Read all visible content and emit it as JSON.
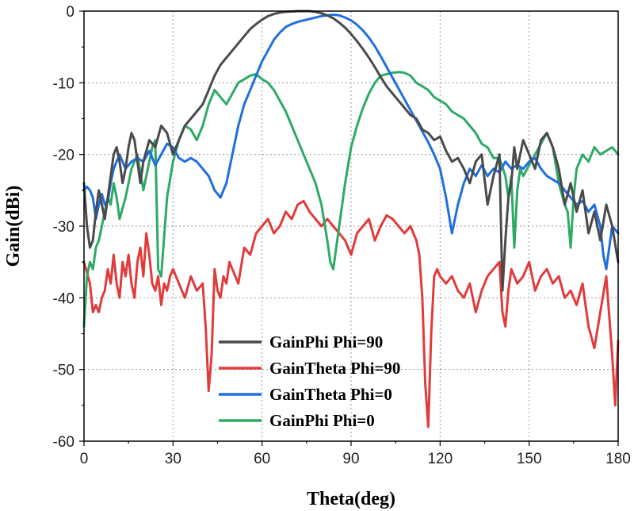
{
  "chart_data": {
    "type": "line",
    "title": "",
    "xlabel": "Theta(deg)",
    "ylabel": "Gain(dBi)",
    "xlim": [
      0,
      180
    ],
    "ylim": [
      -60,
      0
    ],
    "xticks": [
      0,
      30,
      60,
      90,
      120,
      150,
      180
    ],
    "yticks": [
      0,
      -10,
      -20,
      -30,
      -40,
      -50,
      -60
    ],
    "xtick_labels": [
      "0",
      "30",
      "60",
      "90",
      "120",
      "150",
      "180"
    ],
    "ytick_labels": [
      "0",
      "-10",
      "-20",
      "-30",
      "-40",
      "-50",
      "-60"
    ],
    "grid": true,
    "legend_position": "lower-center",
    "series": [
      {
        "name": "GainPhi Phi=90",
        "color": "#4a4a4a",
        "x": [
          0,
          1,
          2,
          3,
          4,
          5,
          6,
          7,
          8,
          9,
          10,
          11,
          12,
          13,
          14,
          15,
          16,
          17,
          18,
          19,
          20,
          22,
          24,
          26,
          28,
          30,
          32,
          34,
          36,
          38,
          40,
          42,
          44,
          46,
          48,
          50,
          52,
          54,
          56,
          58,
          60,
          62,
          64,
          66,
          68,
          70,
          72,
          74,
          76,
          78,
          80,
          82,
          84,
          86,
          88,
          90,
          92,
          94,
          96,
          98,
          100,
          102,
          104,
          106,
          108,
          110,
          112,
          114,
          116,
          118,
          120,
          122,
          124,
          126,
          128,
          130,
          132,
          134,
          136,
          138,
          140,
          141,
          142,
          143,
          144,
          145,
          146,
          147,
          148,
          150,
          152,
          154,
          156,
          158,
          160,
          162,
          164,
          166,
          168,
          170,
          172,
          174,
          176,
          178,
          180
        ],
        "y": [
          -24,
          -30,
          -33,
          -32,
          -28,
          -25,
          -27,
          -29,
          -26,
          -23,
          -20,
          -19,
          -21,
          -24,
          -22,
          -19,
          -17,
          -18,
          -21,
          -24,
          -21,
          -18,
          -19,
          -16,
          -17,
          -20,
          -18,
          -16,
          -15,
          -14,
          -13,
          -11,
          -9,
          -7.5,
          -6.5,
          -5.5,
          -4.5,
          -3.5,
          -2.5,
          -1.8,
          -1.2,
          -0.7,
          -0.4,
          -0.2,
          -0.1,
          -0.05,
          0,
          0,
          0,
          -0.1,
          -0.3,
          -0.6,
          -1,
          -1.6,
          -2.3,
          -3.2,
          -4.2,
          -5.3,
          -6.5,
          -7.8,
          -9.2,
          -10.5,
          -11.5,
          -12.5,
          -13.5,
          -14.5,
          -15,
          -16.5,
          -17,
          -18,
          -17.5,
          -19.5,
          -21,
          -20.5,
          -22,
          -24,
          -21,
          -20,
          -27,
          -23,
          -20,
          -39,
          -32,
          -26,
          -24,
          -19,
          -22,
          -20,
          -18,
          -20,
          -22,
          -18,
          -17,
          -19,
          -22,
          -27,
          -24,
          -28,
          -25,
          -31,
          -28,
          -32,
          -27,
          -30,
          -35
        ]
      },
      {
        "name": "GainTheta Phi=90",
        "color": "#e03c3c",
        "x": [
          0,
          2,
          3,
          4,
          5,
          6,
          7,
          8,
          9,
          10,
          11,
          12,
          13,
          14,
          15,
          16,
          17,
          18,
          19,
          20,
          21,
          22,
          23,
          24,
          25,
          26,
          27,
          28,
          29,
          30,
          32,
          34,
          36,
          38,
          40,
          41,
          42,
          43,
          44,
          45,
          46,
          47,
          48,
          49,
          50,
          52,
          54,
          56,
          58,
          60,
          62,
          64,
          66,
          68,
          70,
          72,
          74,
          76,
          78,
          80,
          82,
          84,
          86,
          88,
          90,
          92,
          94,
          96,
          98,
          100,
          102,
          104,
          106,
          108,
          110,
          112,
          113,
          114,
          115,
          116,
          117,
          118,
          119,
          120,
          122,
          124,
          126,
          128,
          130,
          132,
          134,
          136,
          138,
          140,
          141,
          142,
          143,
          144,
          146,
          148,
          150,
          152,
          154,
          156,
          158,
          160,
          162,
          164,
          166,
          168,
          170,
          172,
          174,
          176,
          178,
          179,
          180
        ],
        "y": [
          -35,
          -38,
          -42,
          -41,
          -42,
          -40,
          -39,
          -36,
          -38,
          -34,
          -38,
          -40,
          -35,
          -37,
          -34,
          -38,
          -40,
          -35,
          -33,
          -37,
          -31,
          -34,
          -38,
          -39,
          -37,
          -41,
          -38,
          -39,
          -37,
          -36,
          -38,
          -40,
          -37,
          -39,
          -38,
          -44,
          -53,
          -48,
          -36,
          -39,
          -40,
          -37,
          -38,
          -35,
          -36,
          -38,
          -33,
          -34,
          -31,
          -30,
          -29,
          -31,
          -30,
          -28,
          -29,
          -27,
          -26.5,
          -28,
          -29,
          -30,
          -29,
          -30,
          -31,
          -32,
          -34,
          -31,
          -30,
          -29,
          -32,
          -30,
          -28.5,
          -29,
          -30,
          -31,
          -30,
          -32,
          -34,
          -40,
          -52,
          -58,
          -45,
          -37,
          -36,
          -37,
          -38,
          -37,
          -39,
          -40,
          -38,
          -42,
          -39,
          -37,
          -36,
          -35,
          -42,
          -44,
          -39,
          -36,
          -38,
          -37,
          -35,
          -39,
          -37,
          -36,
          -38,
          -37,
          -40,
          -39,
          -41,
          -38,
          -44,
          -47,
          -42,
          -37,
          -48,
          -55,
          -46
        ]
      },
      {
        "name": "GainTheta Phi=0",
        "color": "#1f6fe0",
        "x": [
          0,
          1,
          2,
          3,
          4,
          5,
          6,
          7,
          8,
          9,
          10,
          12,
          14,
          16,
          18,
          20,
          22,
          24,
          26,
          28,
          30,
          32,
          34,
          36,
          38,
          40,
          42,
          44,
          46,
          48,
          50,
          52,
          54,
          56,
          58,
          60,
          62,
          64,
          66,
          68,
          70,
          72,
          74,
          76,
          78,
          80,
          82,
          84,
          86,
          88,
          90,
          92,
          94,
          96,
          98,
          100,
          102,
          104,
          106,
          108,
          110,
          112,
          114,
          116,
          118,
          120,
          122,
          124,
          126,
          128,
          130,
          132,
          134,
          136,
          138,
          140,
          142,
          144,
          146,
          148,
          150,
          152,
          154,
          156,
          158,
          160,
          162,
          164,
          166,
          168,
          170,
          172,
          174,
          175,
          176,
          178,
          180
        ],
        "y": [
          -25,
          -24.5,
          -25,
          -26,
          -29,
          -27,
          -25.5,
          -27,
          -26.5,
          -24,
          -22,
          -20,
          -22,
          -21,
          -20.5,
          -21,
          -19.5,
          -21.5,
          -20,
          -18.5,
          -19,
          -20.5,
          -21,
          -20.5,
          -21,
          -22,
          -23,
          -25,
          -26,
          -24,
          -20,
          -16,
          -13,
          -11,
          -9,
          -7,
          -5.5,
          -4,
          -3,
          -2.2,
          -1.8,
          -1.5,
          -1.3,
          -1.1,
          -0.9,
          -0.7,
          -0.6,
          -0.5,
          -0.6,
          -0.9,
          -1.3,
          -1.9,
          -2.7,
          -3.7,
          -4.9,
          -6.3,
          -7.8,
          -9.3,
          -10.8,
          -12.3,
          -13.8,
          -15.3,
          -16.8,
          -18.3,
          -20,
          -22,
          -26,
          -31,
          -27,
          -24,
          -22,
          -23,
          -21.5,
          -23,
          -22,
          -22.5,
          -21,
          -22,
          -21.5,
          -22,
          -21,
          -20.5,
          -22,
          -23,
          -23.5,
          -24,
          -25,
          -26,
          -27,
          -26.5,
          -28,
          -27,
          -30,
          -34,
          -36,
          -30,
          -31
        ]
      },
      {
        "name": "GainPhi Phi=0",
        "color": "#2eaa66",
        "x": [
          0,
          1,
          2,
          3,
          4,
          5,
          6,
          7,
          8,
          9,
          10,
          11,
          12,
          14,
          16,
          18,
          20,
          22,
          23,
          24,
          25,
          26,
          28,
          30,
          32,
          34,
          36,
          38,
          40,
          42,
          44,
          46,
          48,
          50,
          52,
          54,
          56,
          58,
          60,
          62,
          64,
          66,
          68,
          70,
          72,
          74,
          76,
          78,
          80,
          82,
          83,
          84,
          85,
          86,
          88,
          90,
          92,
          94,
          96,
          98,
          100,
          102,
          104,
          106,
          108,
          110,
          112,
          114,
          116,
          118,
          120,
          122,
          124,
          126,
          128,
          130,
          132,
          134,
          136,
          138,
          140,
          142,
          143,
          144,
          145,
          146,
          147,
          148,
          150,
          152,
          154,
          156,
          158,
          160,
          162,
          163,
          164,
          165,
          166,
          168,
          170,
          172,
          174,
          176,
          178,
          180
        ],
        "y": [
          -44,
          -37,
          -35,
          -36,
          -33,
          -32,
          -30,
          -28,
          -26,
          -27,
          -24,
          -26,
          -29,
          -26,
          -22,
          -20,
          -25,
          -21,
          -19,
          -18,
          -36,
          -37,
          -26,
          -21,
          -18,
          -16,
          -16.5,
          -18,
          -16,
          -13,
          -11,
          -12,
          -13,
          -11.5,
          -10,
          -9.5,
          -9,
          -8.8,
          -9.5,
          -10,
          -11,
          -12.5,
          -14,
          -16,
          -18,
          -20,
          -22,
          -24,
          -27,
          -32,
          -35,
          -36,
          -33,
          -30,
          -24,
          -19,
          -16,
          -13.5,
          -11.5,
          -10,
          -9,
          -8.8,
          -8.6,
          -8.5,
          -8.6,
          -9,
          -10,
          -10.5,
          -11,
          -12,
          -12.5,
          -13,
          -14,
          -14.5,
          -15,
          -16,
          -17,
          -18.5,
          -19,
          -20.5,
          -20.5,
          -23,
          -26,
          -23,
          -33,
          -25,
          -22,
          -23,
          -21.5,
          -20,
          -18.5,
          -17,
          -19,
          -24,
          -27,
          -28,
          -33,
          -26,
          -22,
          -20,
          -21,
          -19,
          -20,
          -19.5,
          -19,
          -20
        ]
      }
    ]
  }
}
